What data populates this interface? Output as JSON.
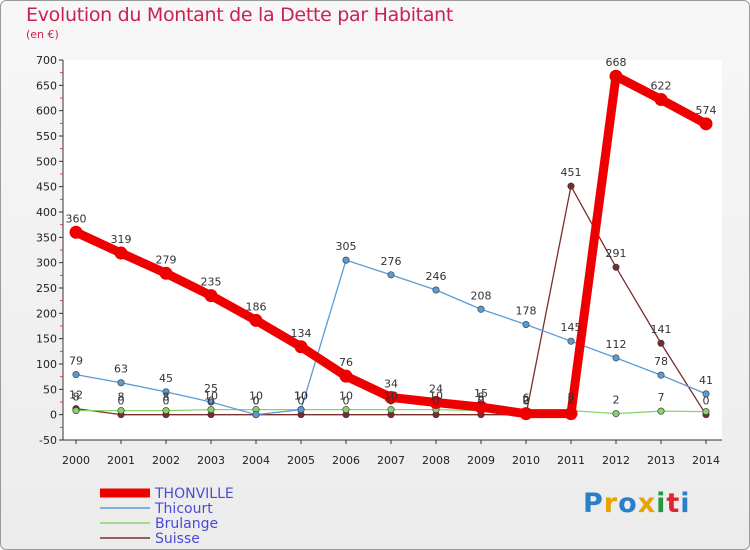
{
  "title": "Evolution du Montant de la Dette par Habitant",
  "subtitle": "(en €)",
  "logo": {
    "text": "Proxiti",
    "colors": [
      "#2a7fc9",
      "#e8a300",
      "#2a7fc9",
      "#e8a300",
      "#1f9a3d",
      "#e0272d",
      "#2a7fc9"
    ]
  },
  "chart_data": {
    "type": "line",
    "title": "Evolution du Montant de la Dette par Habitant",
    "subtitle": "(en €)",
    "xlabel": "",
    "ylabel": "",
    "x": [
      "2000",
      "2001",
      "2002",
      "2003",
      "2004",
      "2005",
      "2006",
      "2007",
      "2008",
      "2009",
      "2010",
      "2011",
      "2012",
      "2013",
      "2014"
    ],
    "ylim": [
      -50,
      700
    ],
    "yticks": [
      "-50",
      "0",
      "50",
      "100",
      "150",
      "200",
      "250",
      "300",
      "350",
      "400",
      "450",
      "500",
      "550",
      "600",
      "650",
      "700"
    ],
    "grid": false,
    "legend_position": "bottom-left",
    "series": [
      {
        "name": "THONVILLE",
        "color": "#ee0000",
        "width": 9,
        "values": [
          360,
          319,
          279,
          235,
          186,
          134,
          76,
          34,
          24,
          15,
          2,
          2,
          668,
          622,
          574
        ],
        "labels": [
          "360",
          "319",
          "279",
          "235",
          "186",
          "134",
          "76",
          "34",
          "24",
          "15",
          "2",
          "2",
          "668",
          "622",
          "574"
        ]
      },
      {
        "name": "Thicourt",
        "color": "#5b9bd5",
        "width": 1.3,
        "values": [
          79,
          63,
          45,
          25,
          0,
          10,
          305,
          276,
          246,
          208,
          178,
          145,
          112,
          78,
          41
        ],
        "labels": [
          "79",
          "63",
          "45",
          "25",
          "0",
          "10",
          "305",
          "276",
          "246",
          "208",
          "178",
          "145",
          "112",
          "78",
          "41"
        ]
      },
      {
        "name": "Brulange",
        "color": "#88d46a",
        "width": 1.3,
        "values": [
          8,
          8,
          8,
          10,
          10,
          10,
          10,
          10,
          10,
          8,
          6,
          8,
          2,
          7,
          6
        ],
        "labels": [
          "8",
          "8",
          "8",
          "10",
          "10",
          "10",
          "10",
          "10",
          "10",
          "8",
          "6",
          "8",
          "2",
          "7",
          ""
        ]
      },
      {
        "name": "Suisse",
        "color": "#7b2c2c",
        "width": 1.3,
        "values": [
          12,
          0,
          0,
          0,
          0,
          0,
          0,
          0,
          0,
          0,
          0,
          451,
          291,
          141,
          0
        ],
        "labels": [
          "12",
          "0",
          "0",
          "0",
          "0",
          "0",
          "0",
          "0",
          "0",
          "0",
          "0",
          "451",
          "291",
          "141",
          "0"
        ]
      }
    ]
  }
}
